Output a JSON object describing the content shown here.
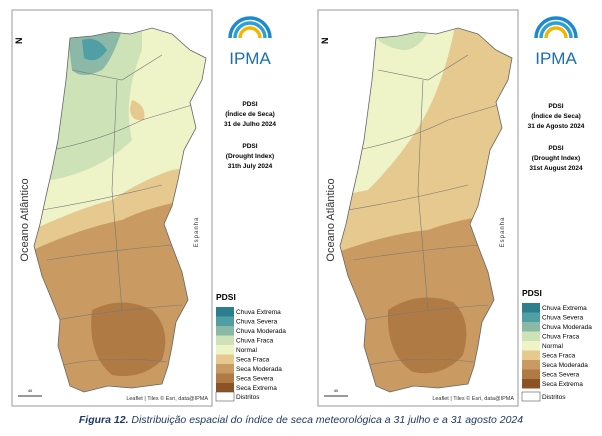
{
  "panels": [
    {
      "north": "N",
      "ocean": "Oceano Atlântico",
      "spain": "Espanha",
      "logo": "IPMA",
      "info": [
        "PDSI",
        "(Índice de Seca)",
        "31 de Julho 2024",
        "PDSI",
        "(Drought Index)",
        "31th July 2024"
      ],
      "legend_title": "PDSI",
      "legend": [
        {
          "label": "Chuva Extrema",
          "color": "#2b7f8e"
        },
        {
          "label": "Chuva Severa",
          "color": "#4f9fa5"
        },
        {
          "label": "Chuva Moderada",
          "color": "#8cb8a8"
        },
        {
          "label": "Chuva Fraca",
          "color": "#cde2b6"
        },
        {
          "label": "Normal",
          "color": "#eef3c8"
        },
        {
          "label": "Seca Fraca",
          "color": "#e6c98e"
        },
        {
          "label": "Seca Moderada",
          "color": "#c99b62"
        },
        {
          "label": "Seca Severa",
          "color": "#b07a45"
        },
        {
          "label": "Seca Extrema",
          "color": "#8e5227"
        }
      ],
      "districts": "Distritos",
      "attribution": "Leaflet | Tiles © Esri, data@IPMA",
      "scale": "40"
    },
    {
      "north": "N",
      "ocean": "Oceano Atlântico",
      "spain": "Espanha",
      "logo": "IPMA",
      "info": [
        "PDSI",
        "(Índice de Seca)",
        "31 de Agosto 2024",
        "PDSI",
        "(Drought Index)",
        "31st August 2024"
      ],
      "legend_title": "PDSI",
      "legend": [
        {
          "label": "Chuva Extrema",
          "color": "#2b7f8e"
        },
        {
          "label": "Chuva Severa",
          "color": "#4f9fa5"
        },
        {
          "label": "Chuva Moderada",
          "color": "#8cb8a8"
        },
        {
          "label": "Chuva Fraca",
          "color": "#cde2b6"
        },
        {
          "label": "Normal",
          "color": "#eef3c8"
        },
        {
          "label": "Seca Fraca",
          "color": "#e6c98e"
        },
        {
          "label": "Seca Moderada",
          "color": "#c99b62"
        },
        {
          "label": "Seca Severa",
          "color": "#b07a45"
        },
        {
          "label": "Seca Extrema",
          "color": "#8e5227"
        }
      ],
      "districts": "Distritos",
      "attribution": "Leaflet | Tiles © Esri, data@IPMA",
      "scale": "40"
    }
  ],
  "caption": {
    "label": "Figura 12.",
    "text": "Distribuição espacial do índice de seca meteorológica a 31 julho e a 31 agosto 2024"
  }
}
